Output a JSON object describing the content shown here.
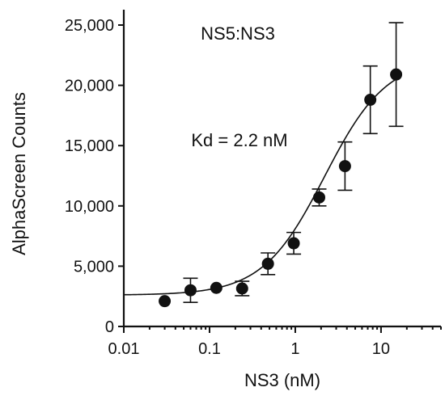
{
  "chart_data": {
    "type": "scatter",
    "title": "NS5:NS3",
    "annotation": "Kd = 2.2 nM",
    "xlabel": "NS3 (nM)",
    "ylabel": "AlphaScreen Counts",
    "xscale": "log",
    "xlim": [
      0.01,
      50
    ],
    "ylim": [
      0,
      25000
    ],
    "xticks": [
      0.01,
      0.1,
      1,
      10
    ],
    "xtick_labels": [
      "0.01",
      "0.1",
      "1",
      "10"
    ],
    "yticks": [
      0,
      5000,
      10000,
      15000,
      20000,
      25000
    ],
    "ytick_labels": [
      "0",
      "5,000",
      "10,000",
      "15,000",
      "20,000",
      "25,000"
    ],
    "grid": false,
    "series": [
      {
        "x": [
          0.03,
          0.06,
          0.12,
          0.24,
          0.48,
          0.96,
          1.9,
          3.8,
          7.5,
          15
        ],
        "y": [
          2100,
          3000,
          3200,
          3150,
          5200,
          6900,
          10700,
          13300,
          18800,
          20900
        ],
        "err": [
          0,
          1000,
          0,
          600,
          900,
          900,
          700,
          2000,
          2800,
          4300
        ]
      }
    ],
    "fit": {
      "model": "sigmoid",
      "kd_nM": 2.2,
      "bottom": 2600,
      "top": 22300,
      "hill": 1.2
    }
  }
}
